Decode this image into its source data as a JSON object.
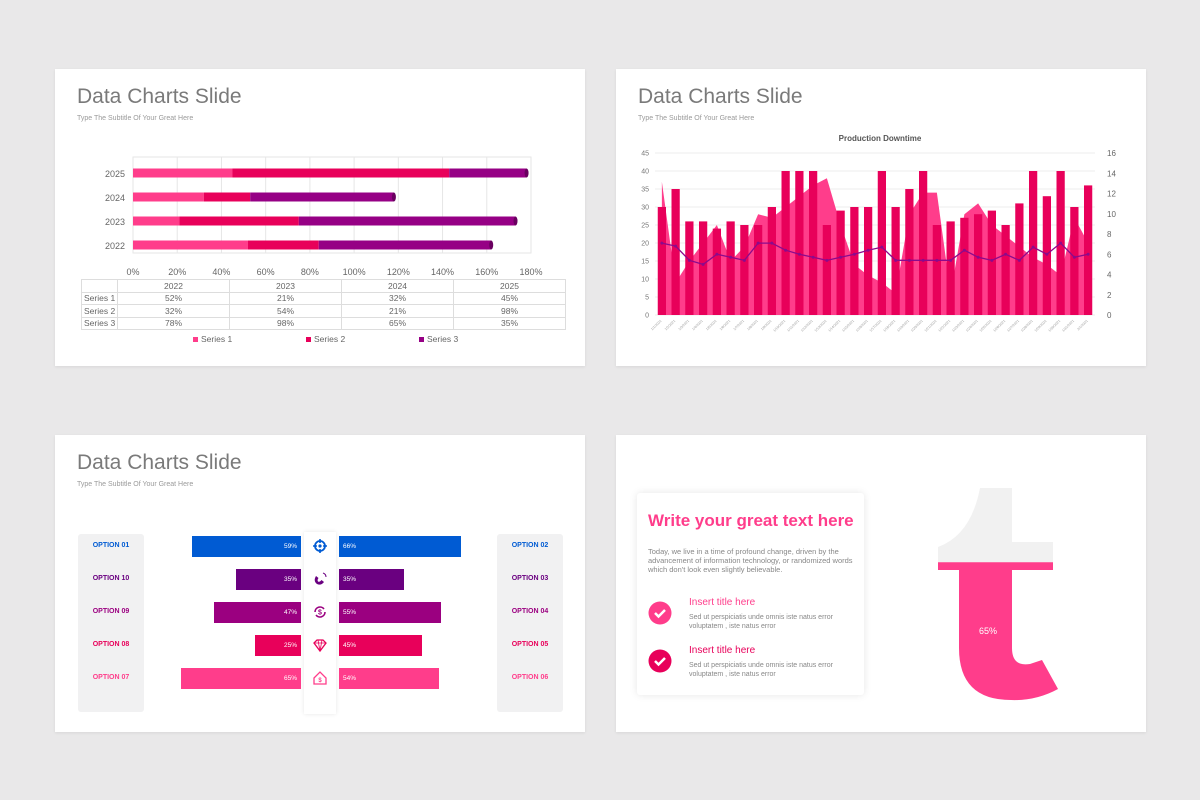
{
  "slides": [
    {
      "title": "Data Charts Slide",
      "subtitle": "Type The Subtitle Of Your Great Here"
    },
    {
      "title": "Data Charts Slide",
      "subtitle": "Type The Subtitle Of Your Great Here"
    },
    {
      "title": "Data Charts Slide",
      "subtitle": "Type The Subtitle Of Your Great Here"
    }
  ],
  "chart_data": [
    {
      "type": "bar",
      "orientation": "horizontal",
      "stacked": true,
      "categories": [
        "2022",
        "2023",
        "2024",
        "2025"
      ],
      "series": [
        {
          "name": "Series 1",
          "values": [
            52,
            21,
            32,
            45
          ],
          "color": "#ff3d8b"
        },
        {
          "name": "Series 2",
          "values": [
            32,
            54,
            21,
            98
          ],
          "color": "#e8005a"
        },
        {
          "name": "Series 3",
          "values": [
            78,
            98,
            65,
            35
          ],
          "color": "#960085"
        }
      ],
      "xlim": [
        0,
        180
      ],
      "xticks": [
        "0%",
        "20%",
        "40%",
        "60%",
        "80%",
        "100%",
        "120%",
        "140%",
        "160%",
        "180%"
      ],
      "table": {
        "header": [
          "2022",
          "2023",
          "2024",
          "2025"
        ],
        "rows": [
          {
            "label": "Series 1",
            "cells": [
              "52%",
              "21%",
              "32%",
              "45%"
            ]
          },
          {
            "label": "Series 2",
            "cells": [
              "32%",
              "54%",
              "21%",
              "98%"
            ]
          },
          {
            "label": "Series 3",
            "cells": [
              "78%",
              "98%",
              "65%",
              "35%"
            ]
          }
        ]
      },
      "legend": "bottom"
    },
    {
      "type": "bar+area+line",
      "title": "Production Downtime",
      "x": [
        "1/1/2021",
        "1/2/2021",
        "1/3/2021",
        "1/4/2021",
        "1/5/2021",
        "1/6/2021",
        "1/7/2021",
        "1/8/2021",
        "1/9/2021",
        "1/10/2021",
        "1/11/2021",
        "1/12/2021",
        "1/13/2021",
        "1/14/2021",
        "1/15/2021",
        "1/16/2021",
        "1/17/2021",
        "1/18/2021",
        "1/19/2021",
        "1/20/2021",
        "1/21/2021",
        "1/22/2021",
        "1/23/2021",
        "1/24/2021",
        "1/25/2021",
        "1/26/2021",
        "1/27/2021",
        "1/28/2021",
        "1/29/2021",
        "1/30/2021",
        "1/31/2021",
        "2/1/2021"
      ],
      "bars": [
        30,
        35,
        26,
        26,
        24,
        26,
        25,
        25,
        30,
        40,
        40,
        40,
        25,
        29,
        30,
        30,
        40,
        30,
        35,
        40,
        25,
        26,
        27,
        28,
        29,
        25,
        31,
        40,
        33,
        40,
        30,
        36
      ],
      "area": [
        37,
        9,
        15,
        20,
        25,
        15,
        19,
        28,
        27,
        30,
        33,
        36,
        38,
        25,
        14,
        11,
        9,
        6,
        28,
        34,
        34,
        6,
        28,
        31,
        25,
        22,
        19,
        16,
        14,
        11,
        27,
        20
      ],
      "line": [
        7.1,
        6.8,
        5.4,
        5,
        6,
        5.7,
        5.4,
        7.1,
        7.1,
        6.4,
        6,
        5.7,
        5.4,
        5.7,
        6,
        6.4,
        6.7,
        5.4,
        5.4,
        5.4,
        5.4,
        5.4,
        6.4,
        5.7,
        5.4,
        6,
        5.4,
        6.7,
        6,
        7.1,
        5.7,
        6
      ],
      "ylim_left": [
        0,
        45
      ],
      "yticks_left": [
        "0",
        "5",
        "10",
        "15",
        "20",
        "25",
        "30",
        "35",
        "40",
        "45"
      ],
      "ylim_right": [
        0,
        16
      ],
      "yticks_right": [
        "0",
        "2",
        "4",
        "6",
        "8",
        "10",
        "12",
        "14",
        "16"
      ],
      "colors": {
        "bars": "#e8005a",
        "area": "#ff3d8b",
        "line": "#8b0a8c"
      }
    }
  ],
  "options": {
    "left": [
      {
        "label": "OPTION 01",
        "value": "59%",
        "pct": 59,
        "color": "#005bd3"
      },
      {
        "label": "OPTION 10",
        "value": "35%",
        "pct": 35,
        "color": "#6a0080"
      },
      {
        "label": "OPTION 09",
        "value": "47%",
        "pct": 47,
        "color": "#9b0080"
      },
      {
        "label": "OPTION 08",
        "value": "25%",
        "pct": 25,
        "color": "#e8005a"
      },
      {
        "label": "OPTION 07",
        "value": "65%",
        "pct": 65,
        "color": "#ff3d8b"
      }
    ],
    "right": [
      {
        "label": "OPTION 02",
        "value": "66%",
        "pct": 66
      },
      {
        "label": "OPTION 03",
        "value": "35%",
        "pct": 35
      },
      {
        "label": "OPTION 04",
        "value": "55%",
        "pct": 55
      },
      {
        "label": "OPTION 05",
        "value": "45%",
        "pct": 45
      },
      {
        "label": "OPTION 06",
        "value": "54%",
        "pct": 54
      }
    ],
    "icons": [
      "target-icon",
      "magnet-icon",
      "dollar-cycle-icon",
      "diamond-icon",
      "house-dollar-icon"
    ]
  },
  "card": {
    "heading": "Write your great text here",
    "body": "Today, we live in a time of profound change, driven by the advancement of information technology, or randomized words which don't look even slightly believable.",
    "items": [
      {
        "title": "Insert title here",
        "text": "Sed ut perspiciatis unde omnis iste natus error voluptatem , iste natus error",
        "color": "#ff3d8b"
      },
      {
        "title": "Insert title here",
        "text": "Sed ut perspiciatis unde omnis iste natus error voluptatem , iste natus error",
        "color": "#e8005a"
      }
    ]
  },
  "gauge": {
    "value": "65%",
    "fraction": 0.65,
    "fill": "#ff3d8b",
    "track": "#f1f1f1"
  }
}
